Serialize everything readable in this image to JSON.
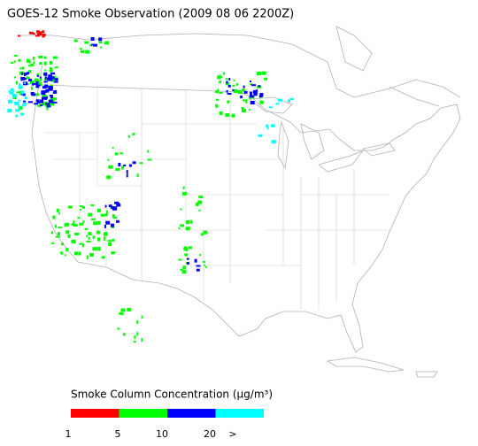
{
  "title": "GOES-12 Smoke Observation (2009 08 06  2200Z)",
  "legend": {
    "title": "Smoke Column Concentration (μg/m³)",
    "colors": [
      "#ff0000",
      "#00ff00",
      "#0000ff",
      "#00ffff"
    ],
    "labels": [
      "1",
      "5",
      "10",
      "20",
      ">"
    ]
  }
}
